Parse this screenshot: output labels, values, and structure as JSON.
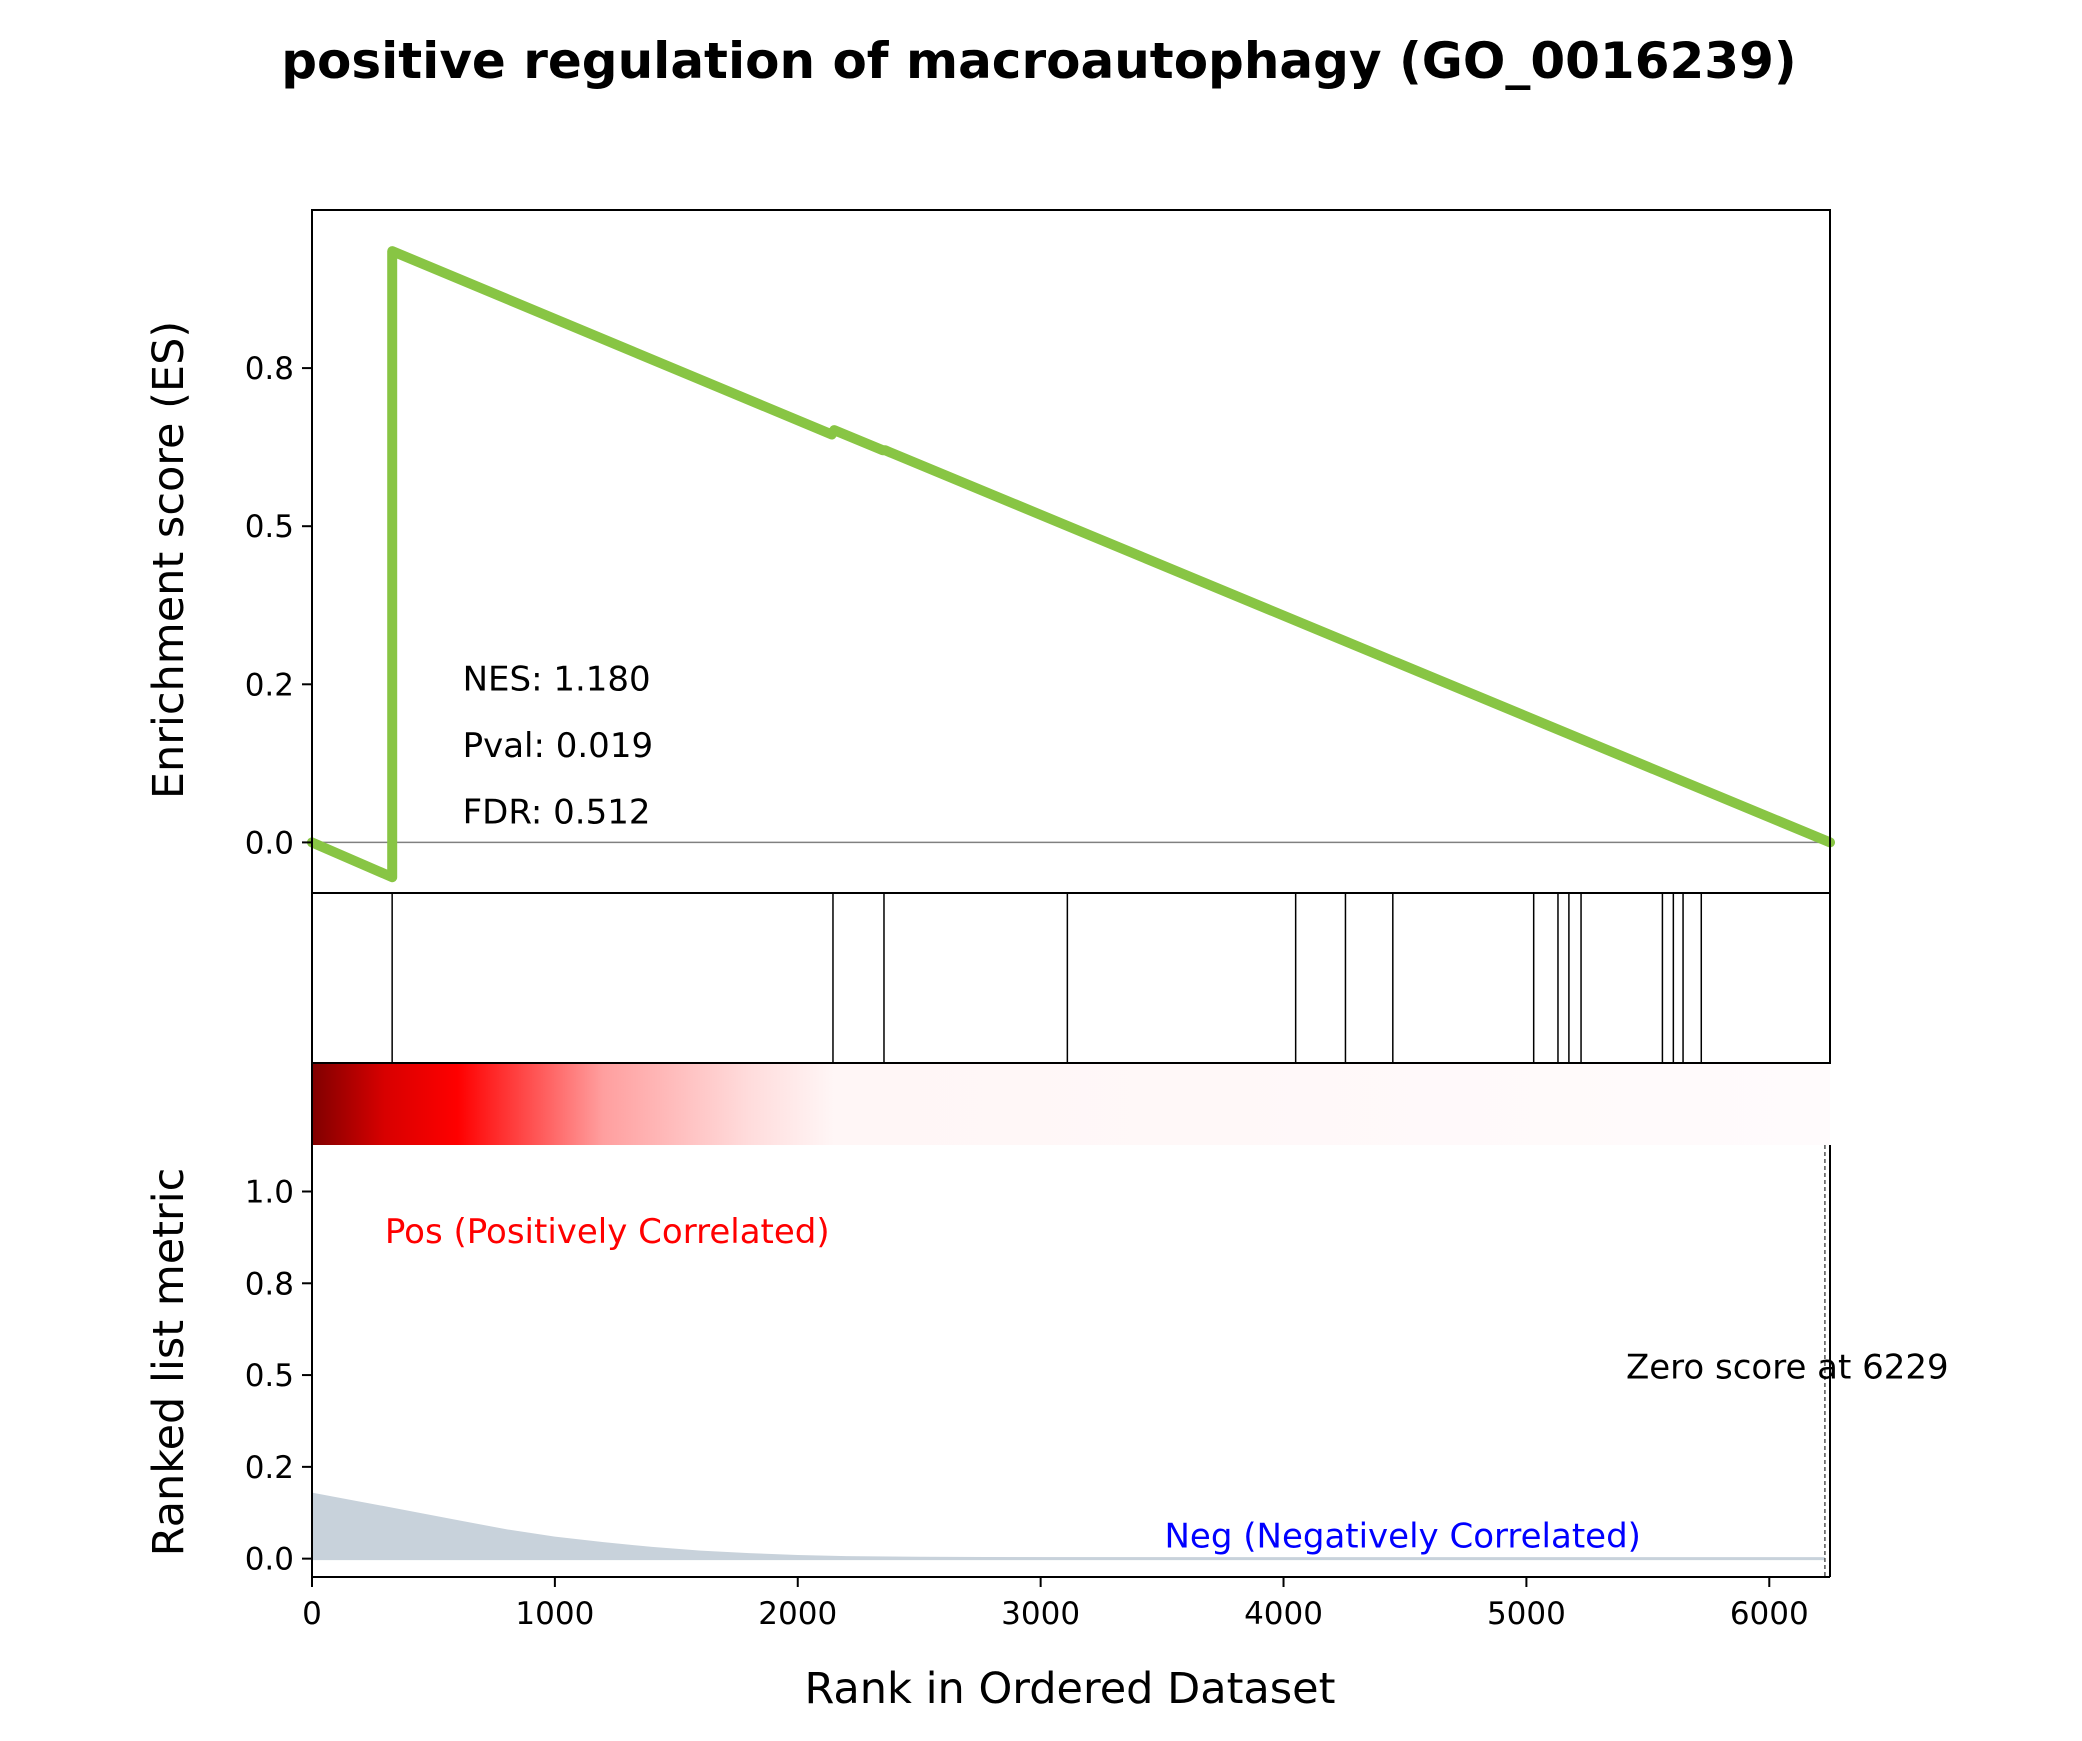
{
  "chart_data": {
    "type": "line",
    "title": "positive regulation of macroautophagy (GO_0016239)",
    "xlabel": "Rank in Ordered Dataset",
    "xlim": [
      0,
      6250
    ],
    "x_ticks": [
      0,
      1000,
      2000,
      3000,
      4000,
      5000,
      6000
    ],
    "enrichment_panel": {
      "ylabel": "Enrichment score (ES)",
      "ylim": [
        -0.08,
        1.0
      ],
      "y_ticks": [
        0.0,
        0.25,
        0.5,
        0.75
      ],
      "y_tick_labels": [
        "0.0",
        "0.2",
        "0.5",
        "0.8"
      ],
      "line_color": "#88c544",
      "series": [
        {
          "x": [
            0,
            330,
            330,
            2140,
            2150,
            2350,
            2360,
            6250
          ],
          "y": [
            0.0,
            -0.055,
            0.935,
            0.645,
            0.652,
            0.62,
            0.62,
            0.0
          ]
        }
      ],
      "annotations": [
        {
          "text": "NES: 1.180",
          "x": 620,
          "y": 0.24
        },
        {
          "text": "Pval: 0.019",
          "x": 620,
          "y": 0.135
        },
        {
          "text": "FDR: 0.512",
          "x": 620,
          "y": 0.03
        }
      ]
    },
    "hits_panel": {
      "positions": [
        330,
        2145,
        2355,
        3110,
        4050,
        4255,
        4450,
        5030,
        5130,
        5175,
        5225,
        5560,
        5605,
        5645,
        5720
      ]
    },
    "ranked_panel": {
      "ylabel": "Ranked list metric",
      "ylim": [
        -0.05,
        1.35
      ],
      "y_ticks": [
        0.0,
        0.25,
        0.5,
        0.75,
        1.0
      ],
      "y_tick_labels": [
        "0.0",
        "0.2",
        "0.5",
        "0.8",
        "1.0"
      ],
      "fill_color": "#c8d2db",
      "metric": {
        "x": [
          0,
          200,
          400,
          600,
          800,
          1000,
          1200,
          1400,
          1600,
          1800,
          2000,
          2200,
          2500,
          3000,
          4000,
          5000,
          6000,
          6229
        ],
        "y": [
          0.18,
          0.155,
          0.13,
          0.105,
          0.08,
          0.06,
          0.045,
          0.032,
          0.022,
          0.015,
          0.01,
          0.007,
          0.005,
          0.004,
          0.003,
          0.002,
          0.002,
          0.0
        ]
      },
      "colorbar": {
        "stops": [
          {
            "x": 0,
            "color": "#800000"
          },
          {
            "x": 300,
            "color": "#d80000"
          },
          {
            "x": 600,
            "color": "#ff0000"
          },
          {
            "x": 1200,
            "color": "#ff9f9f"
          },
          {
            "x": 1800,
            "color": "#ffdcdc"
          },
          {
            "x": 2150,
            "color": "#fff6f6"
          },
          {
            "x": 6250,
            "color": "#fffbfc"
          }
        ]
      },
      "zero_line_x": 6229,
      "labels": {
        "pos": "Pos (Positively Correlated)",
        "neg": "Neg (Negatively Correlated)",
        "zero": "Zero score at 6229"
      },
      "pos_label_color": "#ff0000",
      "neg_label_color": "#0000ff"
    }
  }
}
